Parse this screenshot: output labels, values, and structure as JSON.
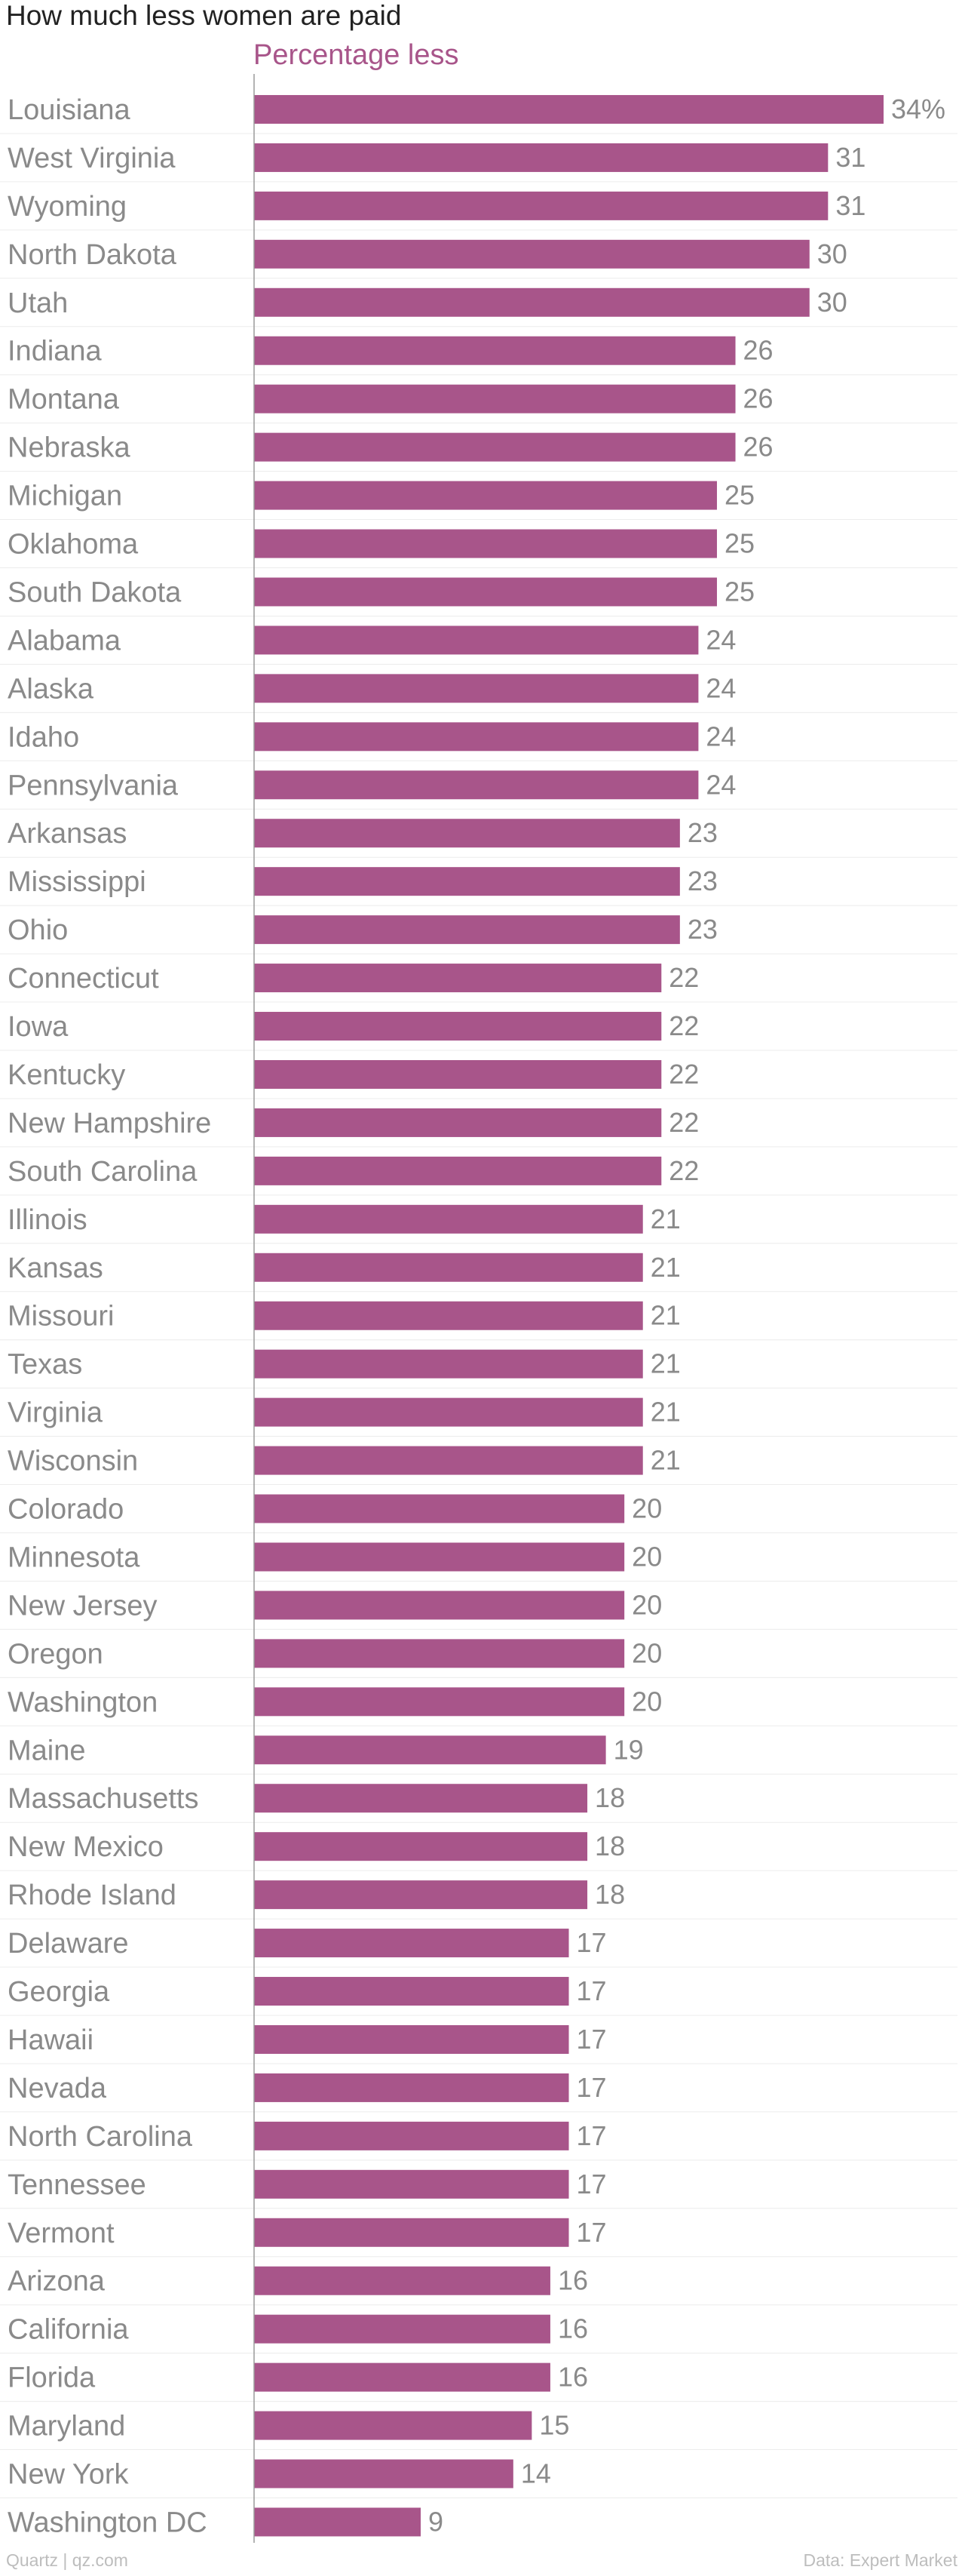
{
  "title": "How much less women are paid",
  "footer": {
    "source_left": "Quartz | qz.com",
    "source_right": "Data: Expert Market"
  },
  "colors": {
    "bar": "#a8558a",
    "series_label": "#a8558a",
    "category_text": "#8a8a8a",
    "value_text": "#8a8a8a",
    "gridline": "#ececec",
    "axis": "#9a9a9a"
  },
  "chart_data": {
    "type": "bar",
    "orientation": "horizontal",
    "series": [
      {
        "name": "Percentage less",
        "values": [
          34,
          31,
          31,
          30,
          30,
          26,
          26,
          26,
          25,
          25,
          25,
          24,
          24,
          24,
          24,
          23,
          23,
          23,
          22,
          22,
          22,
          22,
          22,
          21,
          21,
          21,
          21,
          21,
          21,
          20,
          20,
          20,
          20,
          20,
          19,
          18,
          18,
          18,
          17,
          17,
          17,
          17,
          17,
          17,
          17,
          16,
          16,
          16,
          15,
          14,
          9
        ]
      }
    ],
    "categories": [
      "Louisiana",
      "West Virginia",
      "Wyoming",
      "North Dakota",
      "Utah",
      "Indiana",
      "Montana",
      "Nebraska",
      "Michigan",
      "Oklahoma",
      "South Dakota",
      "Alabama",
      "Alaska",
      "Idaho",
      "Pennsylvania",
      "Arkansas",
      "Mississippi",
      "Ohio",
      "Connecticut",
      "Iowa",
      "Kentucky",
      "New Hampshire",
      "South Carolina",
      "Illinois",
      "Kansas",
      "Missouri",
      "Texas",
      "Virginia",
      "Wisconsin",
      "Colorado",
      "Minnesota",
      "New Jersey",
      "Oregon",
      "Washington",
      "Maine",
      "Massachusetts",
      "New Mexico",
      "Rhode Island",
      "Delaware",
      "Georgia",
      "Hawaii",
      "Nevada",
      "North Carolina",
      "Tennessee",
      "Vermont",
      "Arizona",
      "California",
      "Florida",
      "Maryland",
      "New York",
      "Washington DC"
    ],
    "value_labels": [
      "34%",
      "31",
      "31",
      "30",
      "30",
      "26",
      "26",
      "26",
      "25",
      "25",
      "25",
      "24",
      "24",
      "24",
      "24",
      "23",
      "23",
      "23",
      "22",
      "22",
      "22",
      "22",
      "22",
      "21",
      "21",
      "21",
      "21",
      "21",
      "21",
      "20",
      "20",
      "20",
      "20",
      "20",
      "19",
      "18",
      "18",
      "18",
      "17",
      "17",
      "17",
      "17",
      "17",
      "17",
      "17",
      "16",
      "16",
      "16",
      "15",
      "14",
      "9"
    ],
    "xlim": [
      0,
      34
    ],
    "grid": true,
    "legend": "top-left"
  }
}
